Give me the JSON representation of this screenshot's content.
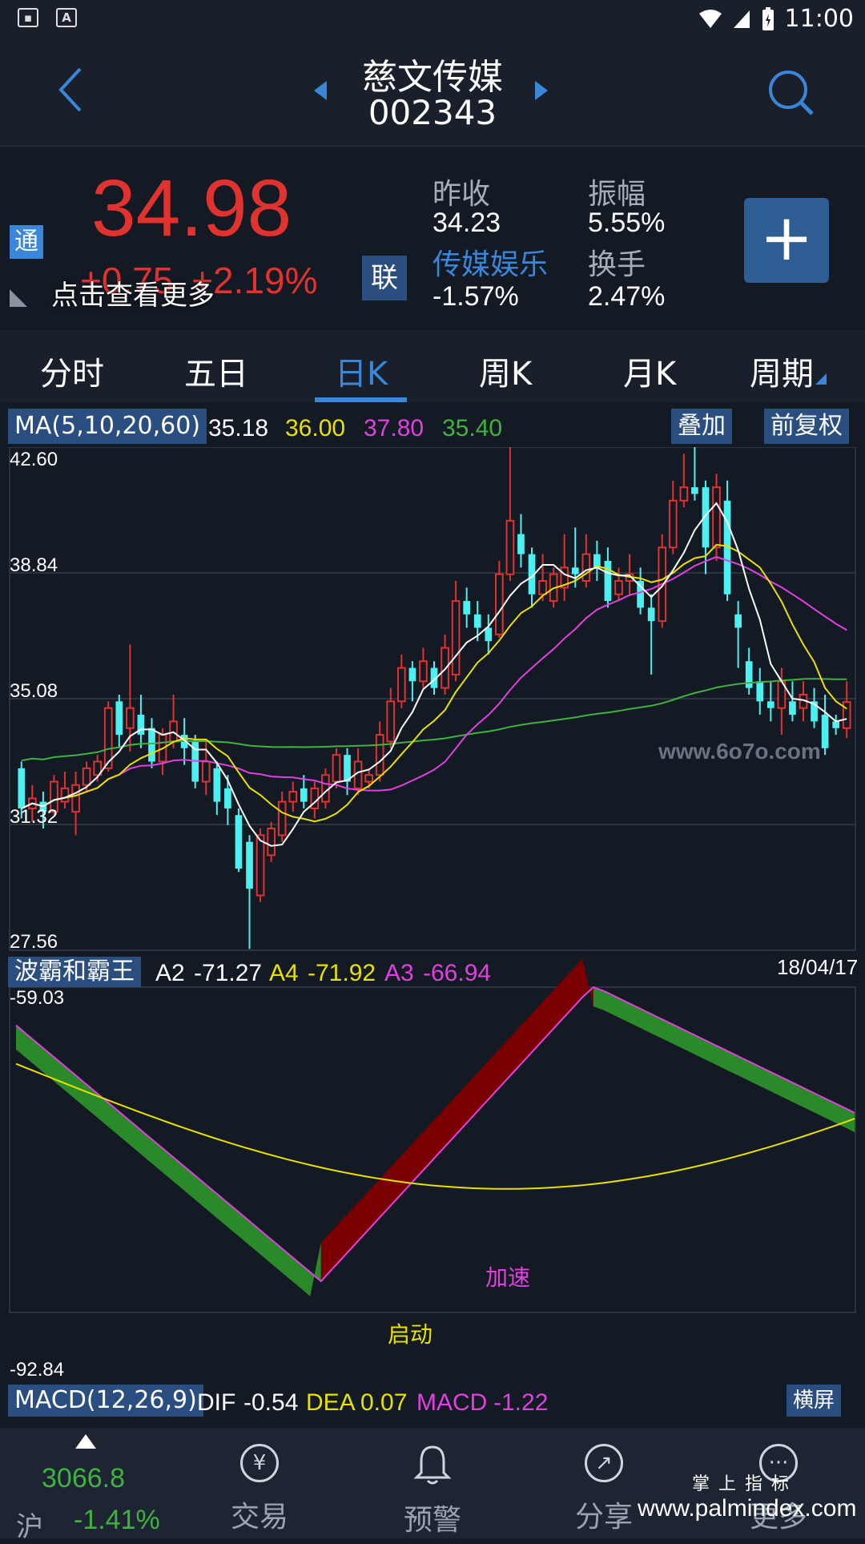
{
  "status": {
    "time": "11:00"
  },
  "header": {
    "name": "慈文传媒",
    "code": "002343"
  },
  "quote": {
    "price": "34.98",
    "change": "+0.75",
    "change_pct": "+2.19%",
    "badge_tong": "通",
    "badge_lian": "联",
    "more_tip": "点击查看更多",
    "prev_close_label": "昨收",
    "prev_close": "34.23",
    "amplitude_label": "振幅",
    "amplitude": "5.55%",
    "sector_label": "传媒娱乐",
    "sector_change": "-1.57%",
    "turnover_label": "换手",
    "turnover": "2.47%",
    "add_label": "+"
  },
  "tabs": [
    "分时",
    "五日",
    "日K",
    "周K",
    "月K",
    "周期"
  ],
  "active_tab": "日K",
  "ma": {
    "label": "MA(5,10,20,60)",
    "v5": "35.18",
    "v10": "36.00",
    "v20": "37.80",
    "v60": "35.40",
    "overlay_label": "叠加",
    "adjust_label": "前复权"
  },
  "price_axis": [
    "42.60",
    "38.84",
    "35.08",
    "31.32",
    "27.56"
  ],
  "watermark": "www.6o7o.com",
  "indicator": {
    "name": "波霸和霸王",
    "a2_label": "A2",
    "a2": "-71.27",
    "a4_label": "A4",
    "a4": "-71.92",
    "a3_label": "A3",
    "a3": "-66.94",
    "date": "18/04/17",
    "top": "-59.03",
    "bottom": "-92.84",
    "start_label": "启动",
    "accel_label": "加速"
  },
  "macd": {
    "label": "MACD(12,26,9)",
    "dif_label": "DIF",
    "dif": "-0.54",
    "dea_label": "DEA",
    "dea": "0.07",
    "macd_label": "MACD",
    "macd": "-1.22",
    "landscape_label": "横屏"
  },
  "nav": {
    "index_value": "3066.8",
    "index_name": "沪",
    "index_change": "-1.41%",
    "trade": "交易",
    "alert": "预警",
    "share": "分享",
    "more": "更多",
    "footer_brand": "掌 上 指 标",
    "footer_url": "www.palmindex.com"
  },
  "colors": {
    "up": "#e0322f",
    "down": "#4df0f0",
    "ma5": "#ffffff",
    "ma10": "#e8e000",
    "ma20": "#e040e0",
    "ma60": "#3fb23f",
    "accent": "#3a86d8"
  }
}
